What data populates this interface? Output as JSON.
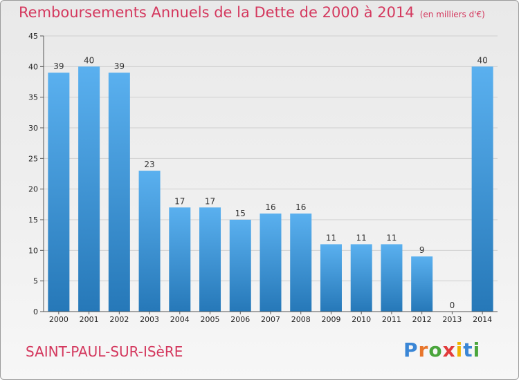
{
  "title": "Remboursements Annuels de la Dette de 2000 à 2014",
  "subtitle": "(en milliers d'€)",
  "city": "SAINT-PAUL-SUR-ISèRE",
  "logo": {
    "letters": [
      "P",
      "r",
      "o",
      "x",
      "i",
      "t",
      "i"
    ],
    "colors": [
      "#3a86d6",
      "#e8762c",
      "#4aa53c",
      "#e23b3b",
      "#f0b400",
      "#3a86d6",
      "#4aa53c"
    ]
  },
  "colors": {
    "bar_light": "#5ab0ef",
    "bar_dark": "#2678b8",
    "grid": "#cfcfcf",
    "axis": "#555555"
  },
  "chart_data": {
    "type": "bar",
    "title": "Remboursements Annuels de la Dette de 2000 à 2014",
    "subtitle": "(en milliers d'€)",
    "categories": [
      "2000",
      "2001",
      "2002",
      "2003",
      "2004",
      "2005",
      "2006",
      "2007",
      "2008",
      "2009",
      "2010",
      "2011",
      "2012",
      "2013",
      "2014"
    ],
    "values": [
      39,
      40,
      39,
      23,
      17,
      17,
      15,
      16,
      16,
      11,
      11,
      11,
      9,
      0,
      40
    ],
    "ylim": [
      0,
      45
    ],
    "yticks": [
      0,
      5,
      10,
      15,
      20,
      25,
      30,
      35,
      40,
      45
    ],
    "grid": true,
    "legend": "none"
  }
}
